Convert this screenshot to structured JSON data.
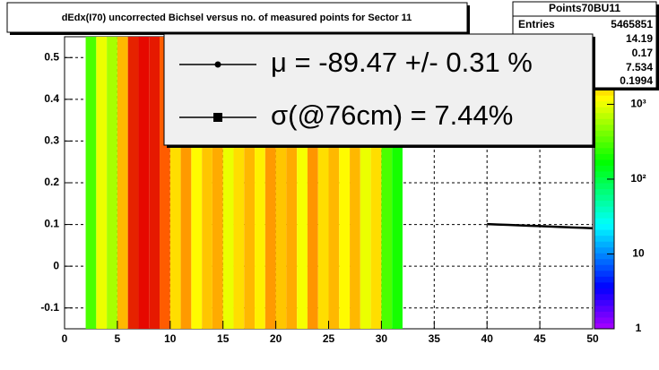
{
  "chart_data": {
    "type": "heatmap",
    "title": "dEdx(I70) uncorrected Bichsel versus no. of measured points for Sector 11",
    "xbins": [
      2,
      3,
      4,
      5,
      6,
      7,
      8,
      9,
      10,
      11,
      12,
      13,
      14,
      15,
      16,
      17,
      18,
      19,
      20,
      21,
      22,
      23,
      24,
      25,
      26,
      27,
      28,
      29,
      30,
      31,
      32
    ],
    "z": [
      300,
      1000,
      600,
      2000,
      6000,
      7500,
      6500,
      4000,
      1500,
      2500,
      1200,
      1800,
      2200,
      1000,
      1500,
      2000,
      1300,
      2500,
      1800,
      2200,
      1100,
      2600,
      1500,
      2000,
      1200,
      2000,
      1000,
      1500,
      300,
      200
    ],
    "zlim": [
      1,
      8000
    ],
    "zlog": true,
    "zticks": [
      1,
      10,
      {
        "value": 100,
        "label": "10²"
      },
      {
        "value": 1000,
        "label": "10³"
      }
    ],
    "xlim": [
      0,
      50
    ],
    "xticks": [
      0,
      5,
      10,
      15,
      20,
      25,
      30,
      35,
      40,
      45,
      50
    ],
    "ylim": [
      -0.15,
      0.55
    ],
    "yticks": [
      -0.1,
      0,
      0.1,
      0.2,
      0.3,
      0.4,
      0.5
    ],
    "grid": true,
    "profile": {
      "x": [
        40,
        41,
        42,
        43,
        44,
        45,
        46,
        47,
        48,
        49,
        50
      ],
      "values": [
        0.101,
        0.1,
        0.099,
        0.098,
        0.097,
        0.096,
        0.095,
        0.094,
        0.093,
        0.092,
        0.091
      ],
      "color": "#000000"
    },
    "legend": [
      "μ  = -89.47 +/-  0.31 %",
      "σ(@76cm) =  7.44%"
    ],
    "stats": {
      "title": "Points70BU11",
      "entries_label": "Entries",
      "entries": "5465851",
      "values": [
        "14.19",
        "0.17",
        "7.534",
        "0.1994"
      ]
    }
  }
}
